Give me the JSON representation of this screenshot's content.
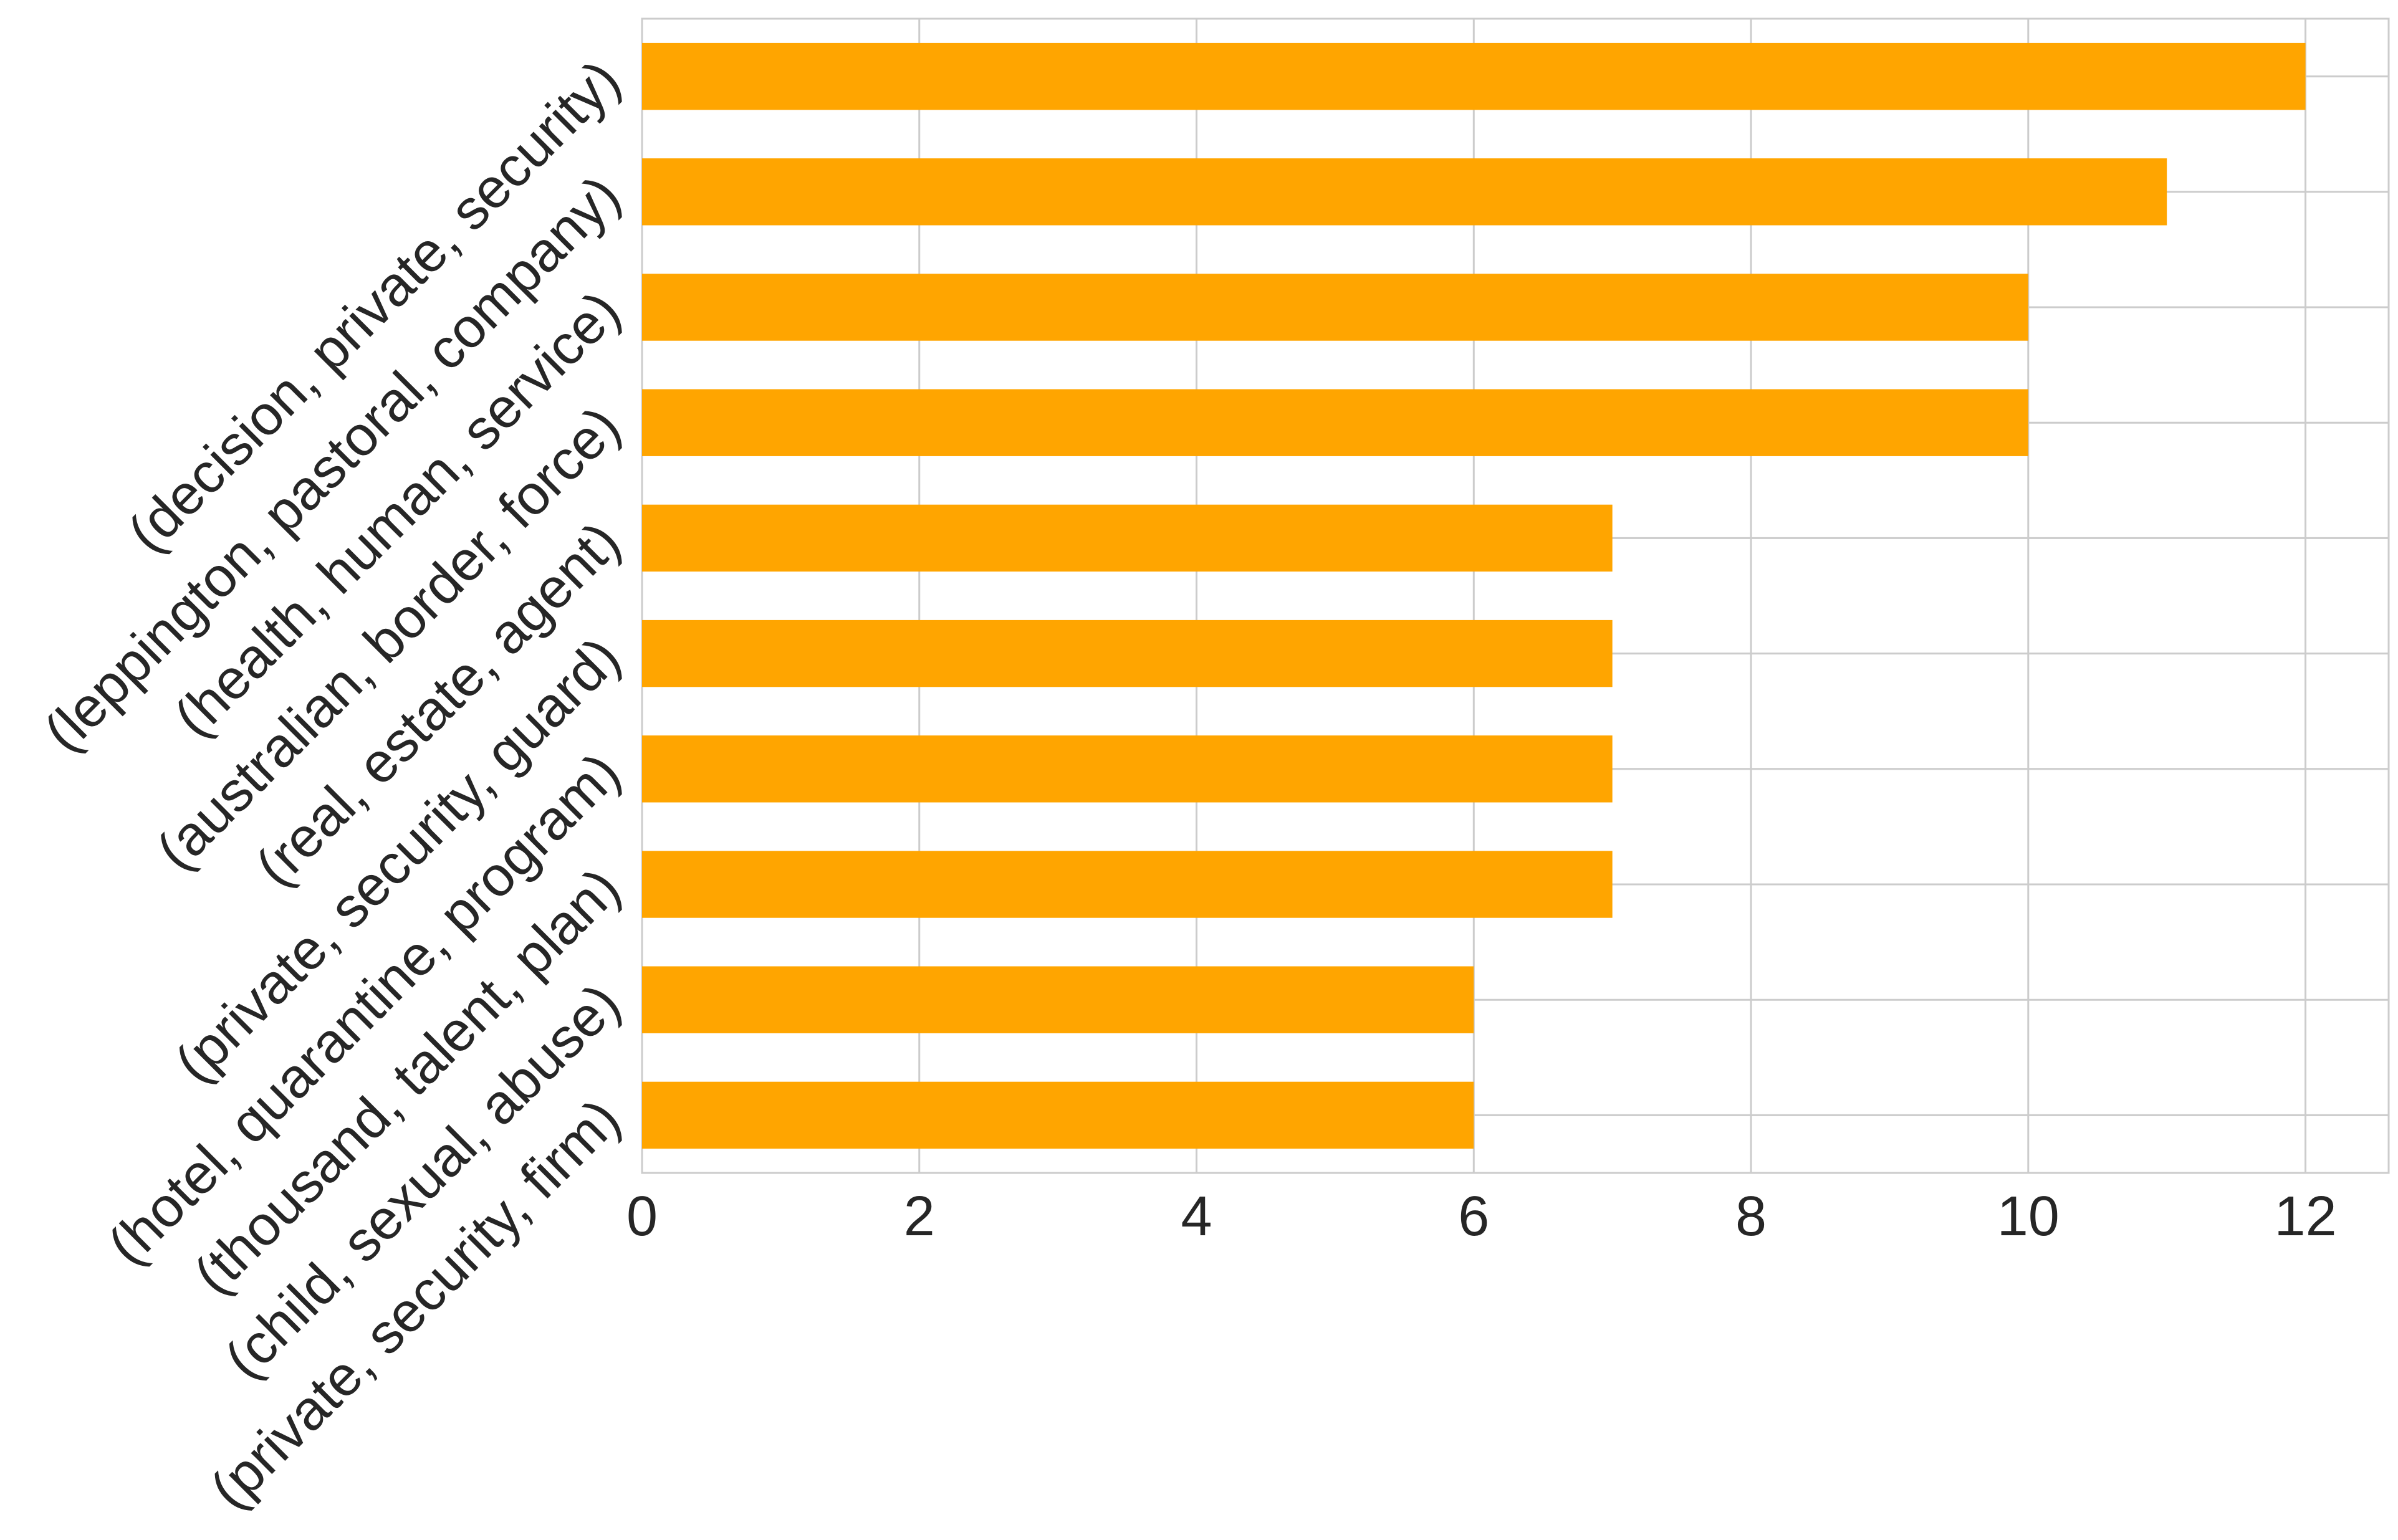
{
  "chart_data": {
    "type": "bar",
    "orientation": "horizontal",
    "title": "",
    "xlabel": "",
    "ylabel": "",
    "categories": [
      "(decision, private, security)",
      "(leppington, pastoral, company)",
      "(health, human, service)",
      "(australian, border, force)",
      "(real, estate, agent)",
      "(private, security, guard)",
      "(hotel, quarantine, program)",
      "(thousand, talent, plan)",
      "(child, sexual, abuse)",
      "(private, security, firm)"
    ],
    "values": [
      12,
      11,
      10,
      10,
      7,
      7,
      7,
      7,
      6,
      6
    ],
    "xlim": [
      0,
      12.6
    ],
    "xticks": [
      0,
      2,
      4,
      6,
      8,
      10,
      12
    ],
    "grid": true,
    "bar_color": "#ffa500",
    "grid_color": "#cccccc",
    "text_color": "#262626"
  }
}
